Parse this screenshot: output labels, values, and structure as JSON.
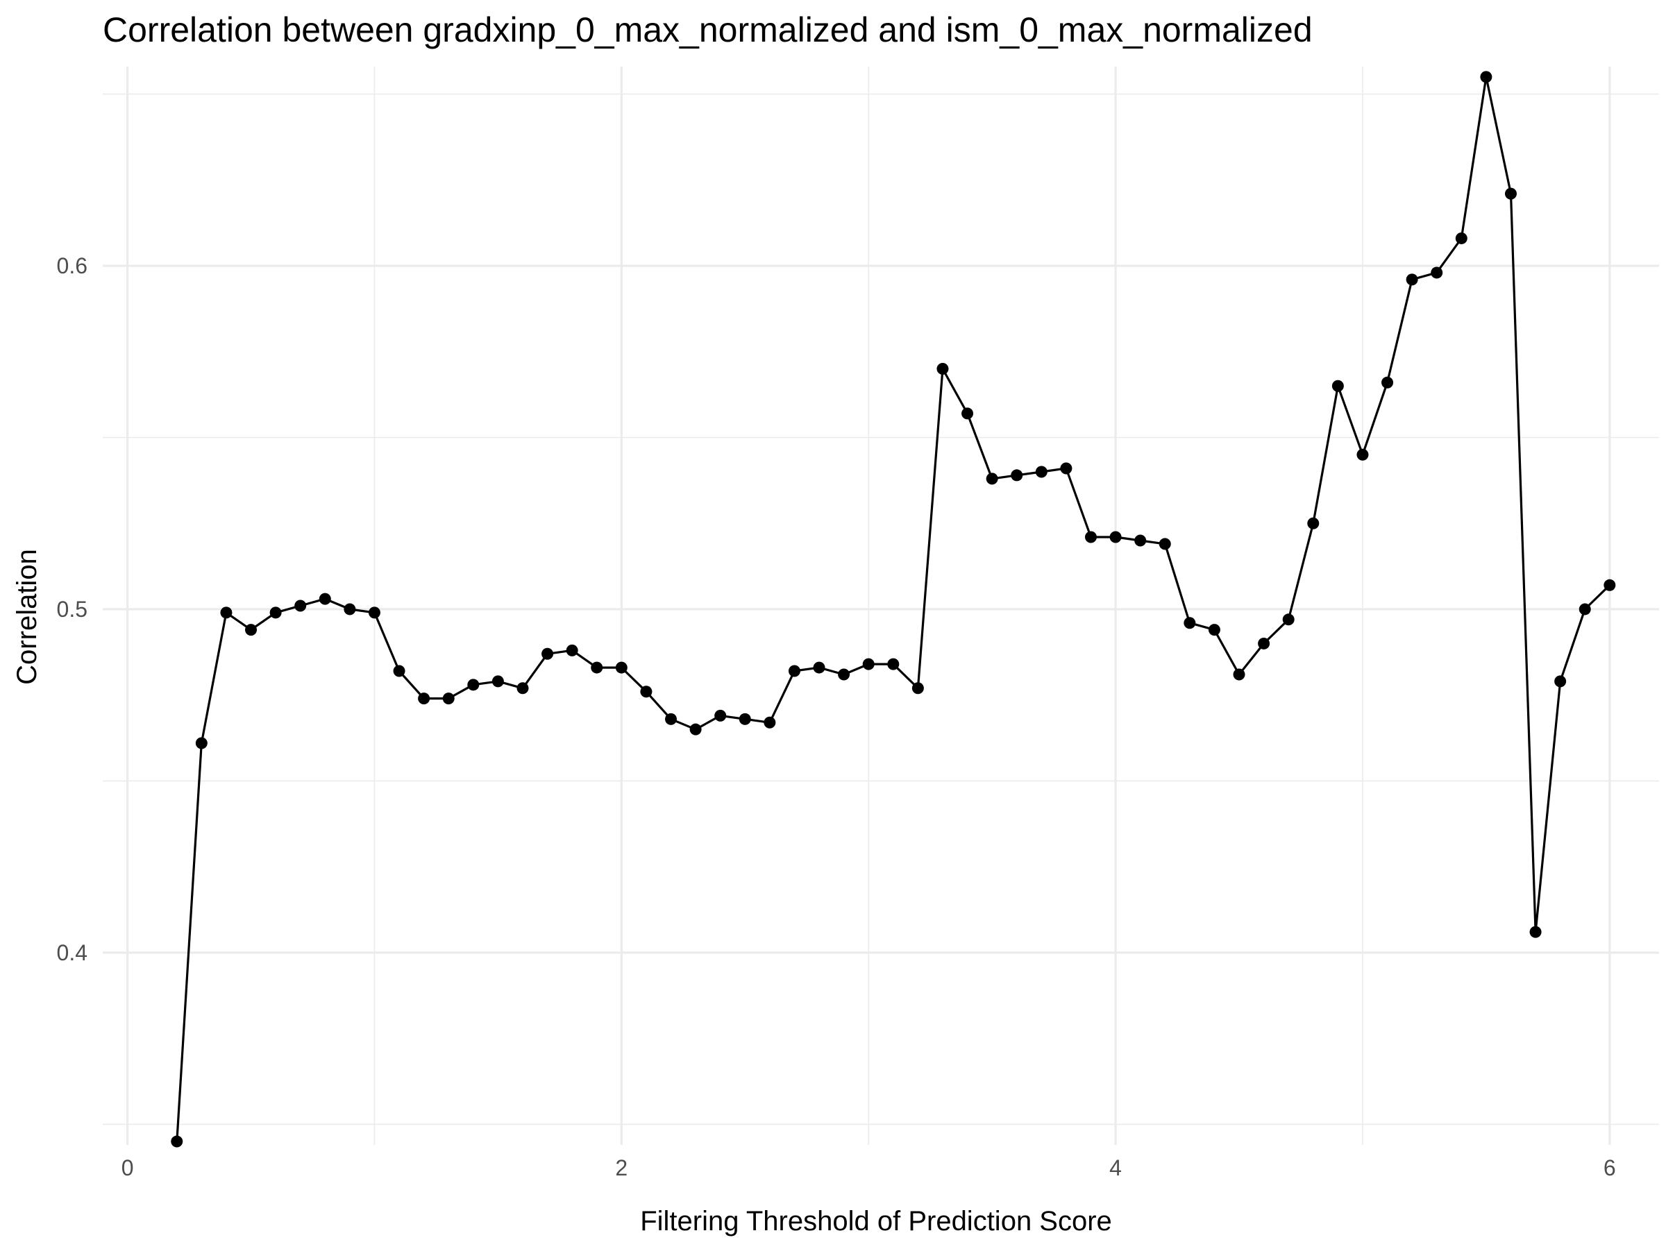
{
  "chart_data": {
    "type": "line",
    "title": "Correlation between gradxinp_0_max_normalized and ism_0_max_normalized",
    "xlabel": "Filtering Threshold of Prediction Score",
    "ylabel": "Correlation",
    "xlim": [
      -0.1,
      6.2
    ],
    "ylim": [
      0.344,
      0.658
    ],
    "x_ticks": [
      0,
      2,
      4,
      6
    ],
    "x_tick_labels": [
      "0",
      "2",
      "4",
      "6"
    ],
    "x_minor_ticks": [
      1,
      3,
      5
    ],
    "y_ticks": [
      0.4,
      0.5,
      0.6
    ],
    "y_tick_labels": [
      "0.4",
      "0.5",
      "0.6"
    ],
    "y_minor_ticks": [
      0.35,
      0.45,
      0.55,
      0.65
    ],
    "grid": true,
    "legend": "none",
    "colors": {
      "line": "#000000",
      "grid": "#ebebeb",
      "tick_text": "#4d4d4d"
    },
    "series": [
      {
        "x": [
          0.2,
          0.3,
          0.4,
          0.5,
          0.6,
          0.7,
          0.8,
          0.9,
          1.0,
          1.1,
          1.2,
          1.3,
          1.4,
          1.5,
          1.6,
          1.7,
          1.8,
          1.9,
          2.0,
          2.1,
          2.2,
          2.3,
          2.4,
          2.5,
          2.6,
          2.7,
          2.8,
          2.9,
          3.0,
          3.1,
          3.2,
          3.3,
          3.4,
          3.5,
          3.6,
          3.7,
          3.8,
          3.9,
          4.0,
          4.1,
          4.2,
          4.3,
          4.4,
          4.5,
          4.6,
          4.7,
          4.8,
          4.9,
          5.0,
          5.1,
          5.2,
          5.3,
          5.4,
          5.5,
          5.6,
          5.7,
          5.8,
          5.9,
          6.0
        ],
        "values": [
          0.345,
          0.461,
          0.499,
          0.494,
          0.499,
          0.501,
          0.503,
          0.5,
          0.499,
          0.482,
          0.474,
          0.474,
          0.478,
          0.479,
          0.477,
          0.487,
          0.488,
          0.483,
          0.483,
          0.476,
          0.468,
          0.465,
          0.469,
          0.468,
          0.467,
          0.482,
          0.483,
          0.481,
          0.484,
          0.484,
          0.477,
          0.57,
          0.557,
          0.538,
          0.539,
          0.54,
          0.541,
          0.521,
          0.521,
          0.52,
          0.519,
          0.496,
          0.494,
          0.481,
          0.49,
          0.497,
          0.525,
          0.565,
          0.545,
          0.566,
          0.596,
          0.598,
          0.608,
          0.655,
          0.621,
          0.406,
          0.479,
          0.5,
          0.507
        ]
      }
    ]
  }
}
